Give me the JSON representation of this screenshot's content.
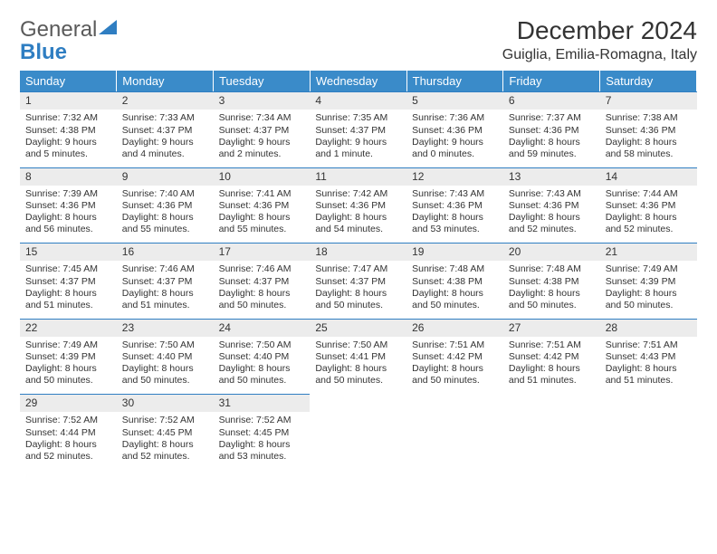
{
  "logo": {
    "text1": "General",
    "text2": "Blue"
  },
  "title": "December 2024",
  "location": "Guiglia, Emilia-Romagna, Italy",
  "colors": {
    "header_bg": "#3a8bc9",
    "header_text": "#ffffff",
    "daynum_bg": "#ececec",
    "daynum_border": "#2f7ec2",
    "logo_gray": "#5a5a5a",
    "logo_blue": "#2f7ec2"
  },
  "weekdays": [
    "Sunday",
    "Monday",
    "Tuesday",
    "Wednesday",
    "Thursday",
    "Friday",
    "Saturday"
  ],
  "days": [
    {
      "n": "1",
      "sr": "Sunrise: 7:32 AM",
      "ss": "Sunset: 4:38 PM",
      "dl1": "Daylight: 9 hours",
      "dl2": "and 5 minutes."
    },
    {
      "n": "2",
      "sr": "Sunrise: 7:33 AM",
      "ss": "Sunset: 4:37 PM",
      "dl1": "Daylight: 9 hours",
      "dl2": "and 4 minutes."
    },
    {
      "n": "3",
      "sr": "Sunrise: 7:34 AM",
      "ss": "Sunset: 4:37 PM",
      "dl1": "Daylight: 9 hours",
      "dl2": "and 2 minutes."
    },
    {
      "n": "4",
      "sr": "Sunrise: 7:35 AM",
      "ss": "Sunset: 4:37 PM",
      "dl1": "Daylight: 9 hours",
      "dl2": "and 1 minute."
    },
    {
      "n": "5",
      "sr": "Sunrise: 7:36 AM",
      "ss": "Sunset: 4:36 PM",
      "dl1": "Daylight: 9 hours",
      "dl2": "and 0 minutes."
    },
    {
      "n": "6",
      "sr": "Sunrise: 7:37 AM",
      "ss": "Sunset: 4:36 PM",
      "dl1": "Daylight: 8 hours",
      "dl2": "and 59 minutes."
    },
    {
      "n": "7",
      "sr": "Sunrise: 7:38 AM",
      "ss": "Sunset: 4:36 PM",
      "dl1": "Daylight: 8 hours",
      "dl2": "and 58 minutes."
    },
    {
      "n": "8",
      "sr": "Sunrise: 7:39 AM",
      "ss": "Sunset: 4:36 PM",
      "dl1": "Daylight: 8 hours",
      "dl2": "and 56 minutes."
    },
    {
      "n": "9",
      "sr": "Sunrise: 7:40 AM",
      "ss": "Sunset: 4:36 PM",
      "dl1": "Daylight: 8 hours",
      "dl2": "and 55 minutes."
    },
    {
      "n": "10",
      "sr": "Sunrise: 7:41 AM",
      "ss": "Sunset: 4:36 PM",
      "dl1": "Daylight: 8 hours",
      "dl2": "and 55 minutes."
    },
    {
      "n": "11",
      "sr": "Sunrise: 7:42 AM",
      "ss": "Sunset: 4:36 PM",
      "dl1": "Daylight: 8 hours",
      "dl2": "and 54 minutes."
    },
    {
      "n": "12",
      "sr": "Sunrise: 7:43 AM",
      "ss": "Sunset: 4:36 PM",
      "dl1": "Daylight: 8 hours",
      "dl2": "and 53 minutes."
    },
    {
      "n": "13",
      "sr": "Sunrise: 7:43 AM",
      "ss": "Sunset: 4:36 PM",
      "dl1": "Daylight: 8 hours",
      "dl2": "and 52 minutes."
    },
    {
      "n": "14",
      "sr": "Sunrise: 7:44 AM",
      "ss": "Sunset: 4:36 PM",
      "dl1": "Daylight: 8 hours",
      "dl2": "and 52 minutes."
    },
    {
      "n": "15",
      "sr": "Sunrise: 7:45 AM",
      "ss": "Sunset: 4:37 PM",
      "dl1": "Daylight: 8 hours",
      "dl2": "and 51 minutes."
    },
    {
      "n": "16",
      "sr": "Sunrise: 7:46 AM",
      "ss": "Sunset: 4:37 PM",
      "dl1": "Daylight: 8 hours",
      "dl2": "and 51 minutes."
    },
    {
      "n": "17",
      "sr": "Sunrise: 7:46 AM",
      "ss": "Sunset: 4:37 PM",
      "dl1": "Daylight: 8 hours",
      "dl2": "and 50 minutes."
    },
    {
      "n": "18",
      "sr": "Sunrise: 7:47 AM",
      "ss": "Sunset: 4:37 PM",
      "dl1": "Daylight: 8 hours",
      "dl2": "and 50 minutes."
    },
    {
      "n": "19",
      "sr": "Sunrise: 7:48 AM",
      "ss": "Sunset: 4:38 PM",
      "dl1": "Daylight: 8 hours",
      "dl2": "and 50 minutes."
    },
    {
      "n": "20",
      "sr": "Sunrise: 7:48 AM",
      "ss": "Sunset: 4:38 PM",
      "dl1": "Daylight: 8 hours",
      "dl2": "and 50 minutes."
    },
    {
      "n": "21",
      "sr": "Sunrise: 7:49 AM",
      "ss": "Sunset: 4:39 PM",
      "dl1": "Daylight: 8 hours",
      "dl2": "and 50 minutes."
    },
    {
      "n": "22",
      "sr": "Sunrise: 7:49 AM",
      "ss": "Sunset: 4:39 PM",
      "dl1": "Daylight: 8 hours",
      "dl2": "and 50 minutes."
    },
    {
      "n": "23",
      "sr": "Sunrise: 7:50 AM",
      "ss": "Sunset: 4:40 PM",
      "dl1": "Daylight: 8 hours",
      "dl2": "and 50 minutes."
    },
    {
      "n": "24",
      "sr": "Sunrise: 7:50 AM",
      "ss": "Sunset: 4:40 PM",
      "dl1": "Daylight: 8 hours",
      "dl2": "and 50 minutes."
    },
    {
      "n": "25",
      "sr": "Sunrise: 7:50 AM",
      "ss": "Sunset: 4:41 PM",
      "dl1": "Daylight: 8 hours",
      "dl2": "and 50 minutes."
    },
    {
      "n": "26",
      "sr": "Sunrise: 7:51 AM",
      "ss": "Sunset: 4:42 PM",
      "dl1": "Daylight: 8 hours",
      "dl2": "and 50 minutes."
    },
    {
      "n": "27",
      "sr": "Sunrise: 7:51 AM",
      "ss": "Sunset: 4:42 PM",
      "dl1": "Daylight: 8 hours",
      "dl2": "and 51 minutes."
    },
    {
      "n": "28",
      "sr": "Sunrise: 7:51 AM",
      "ss": "Sunset: 4:43 PM",
      "dl1": "Daylight: 8 hours",
      "dl2": "and 51 minutes."
    },
    {
      "n": "29",
      "sr": "Sunrise: 7:52 AM",
      "ss": "Sunset: 4:44 PM",
      "dl1": "Daylight: 8 hours",
      "dl2": "and 52 minutes."
    },
    {
      "n": "30",
      "sr": "Sunrise: 7:52 AM",
      "ss": "Sunset: 4:45 PM",
      "dl1": "Daylight: 8 hours",
      "dl2": "and 52 minutes."
    },
    {
      "n": "31",
      "sr": "Sunrise: 7:52 AM",
      "ss": "Sunset: 4:45 PM",
      "dl1": "Daylight: 8 hours",
      "dl2": "and 53 minutes."
    }
  ]
}
